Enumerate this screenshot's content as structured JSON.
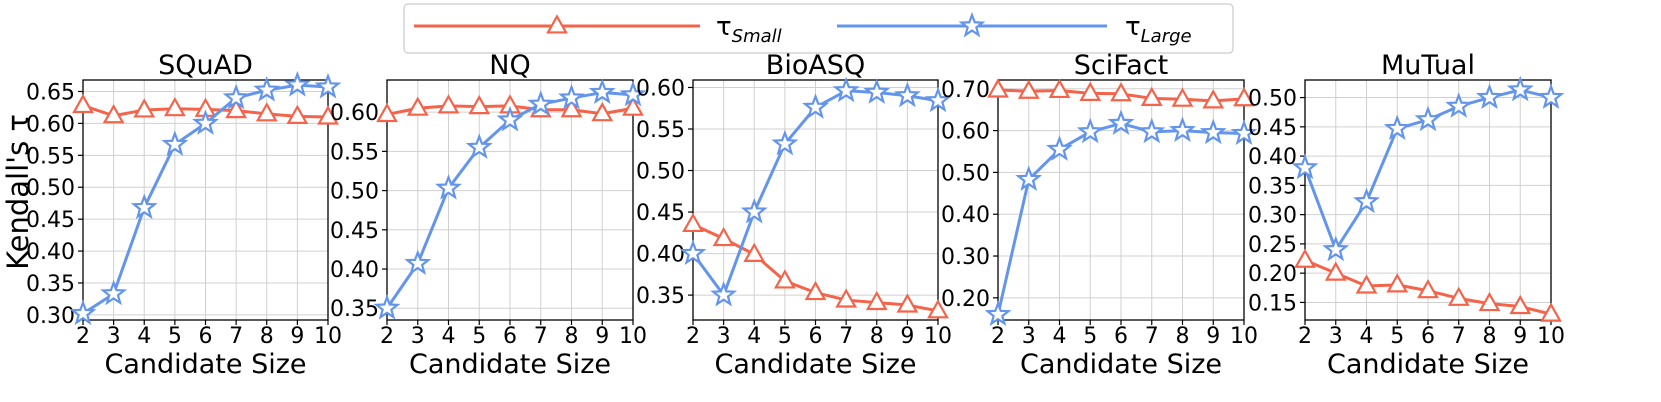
{
  "legend": {
    "entries": [
      {
        "label": "τ",
        "sub": "Small",
        "color": "#f4644a",
        "marker": "triangle"
      },
      {
        "label": "τ",
        "sub": "Large",
        "color": "#6495ed",
        "marker": "star"
      }
    ],
    "placement": "top-center"
  },
  "colors": {
    "small": "#f4644a",
    "large": "#6495ed",
    "grid": "#d0d0d0"
  },
  "chart_data": [
    {
      "type": "line",
      "title": "SQuAD",
      "xlabel": "Candidate Size",
      "ylabel": "Kendall's τ",
      "x": [
        2,
        3,
        4,
        5,
        6,
        7,
        8,
        9,
        10
      ],
      "xlim": [
        2,
        10
      ],
      "ylim": [
        0.292,
        0.668
      ],
      "yticks": [
        0.3,
        0.35,
        0.4,
        0.45,
        0.5,
        0.55,
        0.6,
        0.65
      ],
      "grid": true,
      "series": [
        {
          "name": "τSmall",
          "values": [
            0.628,
            0.612,
            0.621,
            0.623,
            0.622,
            0.62,
            0.615,
            0.611,
            0.61
          ]
        },
        {
          "name": "τLarge",
          "values": [
            0.302,
            0.333,
            0.468,
            0.567,
            0.6,
            0.64,
            0.652,
            0.66,
            0.657
          ]
        }
      ]
    },
    {
      "type": "line",
      "title": "NQ",
      "xlabel": "Candidate Size",
      "ylabel": "",
      "x": [
        2,
        3,
        4,
        5,
        6,
        7,
        8,
        9,
        10
      ],
      "xlim": [
        2,
        10
      ],
      "ylim": [
        0.335,
        0.641
      ],
      "yticks": [
        0.35,
        0.4,
        0.45,
        0.5,
        0.55,
        0.6
      ],
      "grid": true,
      "series": [
        {
          "name": "τSmall",
          "values": [
            0.597,
            0.605,
            0.608,
            0.607,
            0.608,
            0.603,
            0.603,
            0.598,
            0.605
          ]
        },
        {
          "name": "τLarge",
          "values": [
            0.35,
            0.407,
            0.503,
            0.555,
            0.59,
            0.61,
            0.618,
            0.625,
            0.622
          ]
        }
      ]
    },
    {
      "type": "line",
      "title": "BioASQ",
      "xlabel": "Candidate Size",
      "ylabel": "",
      "x": [
        2,
        3,
        4,
        5,
        6,
        7,
        8,
        9,
        10
      ],
      "xlim": [
        2,
        10
      ],
      "ylim": [
        0.32,
        0.609
      ],
      "yticks": [
        0.35,
        0.4,
        0.45,
        0.5,
        0.55,
        0.6
      ],
      "grid": true,
      "series": [
        {
          "name": "τSmall",
          "values": [
            0.435,
            0.418,
            0.399,
            0.367,
            0.353,
            0.344,
            0.341,
            0.338,
            0.331
          ]
        },
        {
          "name": "τLarge",
          "values": [
            0.4,
            0.35,
            0.45,
            0.532,
            0.576,
            0.596,
            0.594,
            0.59,
            0.584
          ]
        }
      ]
    },
    {
      "type": "line",
      "title": "SciFact",
      "xlabel": "Candidate Size",
      "ylabel": "",
      "x": [
        2,
        3,
        4,
        5,
        6,
        7,
        8,
        9,
        10
      ],
      "xlim": [
        2,
        10
      ],
      "ylim": [
        0.147,
        0.721
      ],
      "yticks": [
        0.2,
        0.3,
        0.4,
        0.5,
        0.6,
        0.7
      ],
      "grid": true,
      "series": [
        {
          "name": "τSmall",
          "values": [
            0.697,
            0.694,
            0.696,
            0.689,
            0.688,
            0.677,
            0.675,
            0.671,
            0.676
          ]
        },
        {
          "name": "τLarge",
          "values": [
            0.16,
            0.483,
            0.555,
            0.597,
            0.617,
            0.597,
            0.6,
            0.595,
            0.593
          ]
        }
      ]
    },
    {
      "type": "line",
      "title": "MuTual",
      "xlabel": "Candidate Size",
      "ylabel": "",
      "x": [
        2,
        3,
        4,
        5,
        6,
        7,
        8,
        9,
        10
      ],
      "xlim": [
        2,
        10
      ],
      "ylim": [
        0.12,
        0.53
      ],
      "yticks": [
        0.15,
        0.2,
        0.25,
        0.3,
        0.35,
        0.4,
        0.45,
        0.5
      ],
      "grid": true,
      "series": [
        {
          "name": "τSmall",
          "values": [
            0.222,
            0.2,
            0.178,
            0.18,
            0.17,
            0.157,
            0.148,
            0.143,
            0.13
          ]
        },
        {
          "name": "τLarge",
          "values": [
            0.38,
            0.24,
            0.322,
            0.447,
            0.462,
            0.485,
            0.5,
            0.513,
            0.5
          ]
        }
      ]
    }
  ]
}
